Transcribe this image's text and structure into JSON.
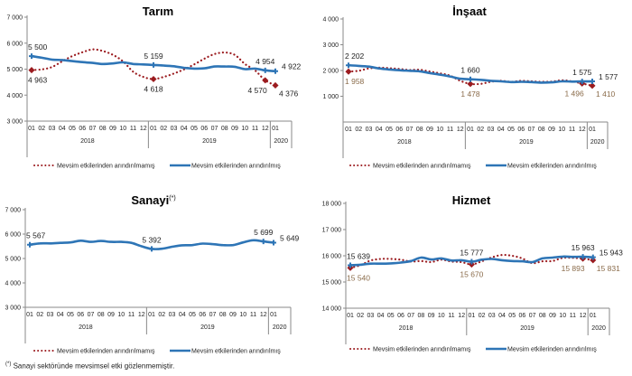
{
  "legend": {
    "unadjusted": "Mevsim etkilerinden arındırılmamış",
    "adjusted": "Mevsim etkilerinden arındırılmış"
  },
  "colors": {
    "adjusted": "#2e75b6",
    "unadjusted": "#9b1b1f",
    "unadjusted_label": "#8a6b4a"
  },
  "footnote": {
    "marker": "(*)",
    "text": "Sanayi sektöründe mevsimsel etki gözlenmemiştir."
  },
  "chart_data": [
    {
      "id": "tarim",
      "type": "line",
      "title": "Tarım",
      "title_sup": "",
      "xlabel": "",
      "ylabel": "",
      "ylim": [
        3000,
        7000
      ],
      "yticks": [
        3000,
        4000,
        5000,
        6000,
        7000
      ],
      "ytick_labels": [
        "3 000",
        "4 000",
        "5 000",
        "6 000",
        "7 000"
      ],
      "x_months": [
        "01",
        "02",
        "03",
        "04",
        "05",
        "06",
        "07",
        "08",
        "09",
        "10",
        "11",
        "12",
        "01",
        "02",
        "03",
        "04",
        "05",
        "06",
        "07",
        "08",
        "09",
        "10",
        "11",
        "12",
        "01"
      ],
      "years": [
        {
          "label": "2018",
          "months": 12
        },
        {
          "label": "2019",
          "months": 12
        },
        {
          "label": "2020",
          "months": 1
        }
      ],
      "legend_position": "bottom",
      "series": [
        {
          "name": "Mevsim etkilerinden arındırılmamış",
          "style": "dotted",
          "values": [
            4963,
            4990,
            5080,
            5300,
            5500,
            5650,
            5760,
            5700,
            5550,
            5300,
            4900,
            4700,
            4618,
            4700,
            4830,
            4990,
            5180,
            5400,
            5580,
            5640,
            5550,
            5200,
            4950,
            4570,
            4376
          ],
          "markers": [
            0,
            12,
            23,
            24
          ]
        },
        {
          "name": "Mevsim etkilerinden arındırılmış",
          "style": "solid",
          "values": [
            5500,
            5440,
            5370,
            5350,
            5310,
            5270,
            5240,
            5200,
            5220,
            5260,
            5200,
            5180,
            5159,
            5140,
            5110,
            5050,
            5020,
            5030,
            5100,
            5100,
            5090,
            5000,
            5020,
            4954,
            4922
          ],
          "markers": [
            0,
            12,
            23,
            24
          ]
        }
      ],
      "annotations": [
        {
          "series": 1,
          "index": 0,
          "text": "5 500",
          "pos": "above"
        },
        {
          "series": 0,
          "index": 0,
          "text": "4 963",
          "pos": "below"
        },
        {
          "series": 1,
          "index": 12,
          "text": "5 159",
          "pos": "above"
        },
        {
          "series": 0,
          "index": 12,
          "text": "4 618",
          "pos": "below"
        },
        {
          "series": 1,
          "index": 23,
          "text": "4 954",
          "pos": "above"
        },
        {
          "series": 0,
          "index": 23,
          "text": "4 570",
          "pos": "below"
        },
        {
          "series": 1,
          "index": 24,
          "text": "4 922",
          "pos": "right"
        },
        {
          "series": 0,
          "index": 24,
          "text": "4 376",
          "pos": "belowright"
        }
      ]
    },
    {
      "id": "insaat",
      "type": "line",
      "title": "İnşaat",
      "title_sup": "",
      "xlabel": "",
      "ylabel": "",
      "ylim": [
        0,
        4000
      ],
      "yticks": [
        1000,
        2000,
        3000,
        4000
      ],
      "ytick_labels": [
        "1 000",
        "2 000",
        "3 000",
        "4 000"
      ],
      "x_months": [
        "01",
        "02",
        "03",
        "04",
        "05",
        "06",
        "07",
        "08",
        "09",
        "10",
        "11",
        "12",
        "01",
        "02",
        "03",
        "04",
        "05",
        "06",
        "07",
        "08",
        "09",
        "10",
        "11",
        "12",
        "01"
      ],
      "years": [
        {
          "label": "2018",
          "months": 12
        },
        {
          "label": "2019",
          "months": 12
        },
        {
          "label": "2020",
          "months": 1
        }
      ],
      "legend_position": "bottom",
      "series": [
        {
          "name": "Mevsim etkilerinden arındırılmamış",
          "style": "dotted",
          "values": [
            1958,
            1990,
            2080,
            2110,
            2090,
            2060,
            2020,
            2030,
            1960,
            1890,
            1800,
            1600,
            1478,
            1480,
            1560,
            1600,
            1560,
            1600,
            1580,
            1560,
            1570,
            1620,
            1580,
            1496,
            1410
          ],
          "markers": [
            0,
            12,
            23,
            24
          ]
        },
        {
          "name": "Mevsim etkilerinden arındırılmış",
          "style": "solid",
          "values": [
            2202,
            2180,
            2150,
            2080,
            2040,
            2010,
            1990,
            1970,
            1900,
            1840,
            1770,
            1680,
            1660,
            1640,
            1600,
            1580,
            1550,
            1560,
            1550,
            1530,
            1540,
            1580,
            1570,
            1575,
            1577
          ],
          "markers": [
            0,
            12,
            23,
            24
          ]
        }
      ],
      "annotations": [
        {
          "series": 1,
          "index": 0,
          "text": "2 202",
          "pos": "above"
        },
        {
          "series": 0,
          "index": 0,
          "text": "1 958",
          "pos": "below",
          "alt": true
        },
        {
          "series": 1,
          "index": 12,
          "text": "1 660",
          "pos": "above"
        },
        {
          "series": 0,
          "index": 12,
          "text": "1 478",
          "pos": "below",
          "alt": true
        },
        {
          "series": 1,
          "index": 23,
          "text": "1 575",
          "pos": "above"
        },
        {
          "series": 0,
          "index": 23,
          "text": "1 496",
          "pos": "below",
          "alt": true
        },
        {
          "series": 1,
          "index": 24,
          "text": "1 577",
          "pos": "right"
        },
        {
          "series": 0,
          "index": 24,
          "text": "1 410",
          "pos": "belowright",
          "alt": true
        }
      ]
    },
    {
      "id": "sanayi",
      "type": "line",
      "title": "Sanayi",
      "title_sup": "(*)",
      "xlabel": "",
      "ylabel": "",
      "ylim": [
        3000,
        7000
      ],
      "yticks": [
        3000,
        4000,
        5000,
        6000,
        7000
      ],
      "ytick_labels": [
        "3 000",
        "4 000",
        "5 000",
        "6 000",
        "7 000"
      ],
      "x_months": [
        "01",
        "02",
        "03",
        "04",
        "05",
        "06",
        "07",
        "08",
        "09",
        "10",
        "11",
        "12",
        "01",
        "02",
        "03",
        "04",
        "05",
        "06",
        "07",
        "08",
        "09",
        "10",
        "11",
        "12",
        "01"
      ],
      "years": [
        {
          "label": "2018",
          "months": 12
        },
        {
          "label": "2019",
          "months": 12
        },
        {
          "label": "2020",
          "months": 1
        }
      ],
      "legend_position": "bottom",
      "series": [
        {
          "name": "Mevsim etkilerinden arındırılmamış",
          "style": "dotted",
          "values": [],
          "markers": []
        },
        {
          "name": "Mevsim etkilerinden arındırılmış",
          "style": "solid",
          "values": [
            5567,
            5620,
            5620,
            5640,
            5660,
            5730,
            5680,
            5720,
            5680,
            5680,
            5640,
            5500,
            5392,
            5400,
            5480,
            5540,
            5550,
            5610,
            5590,
            5550,
            5550,
            5660,
            5750,
            5699,
            5649
          ],
          "markers": [
            0,
            12,
            23,
            24
          ]
        }
      ],
      "annotations": [
        {
          "series": 1,
          "index": 0,
          "text": "5 567",
          "pos": "above"
        },
        {
          "series": 1,
          "index": 12,
          "text": "5 392",
          "pos": "above"
        },
        {
          "series": 1,
          "index": 23,
          "text": "5 699",
          "pos": "above"
        },
        {
          "series": 1,
          "index": 24,
          "text": "5 649",
          "pos": "right"
        }
      ]
    },
    {
      "id": "hizmet",
      "type": "line",
      "title": "Hizmet",
      "title_sup": "",
      "xlabel": "",
      "ylabel": "",
      "ylim": [
        14000,
        18000
      ],
      "yticks": [
        14000,
        15000,
        16000,
        17000,
        18000
      ],
      "ytick_labels": [
        "14 000",
        "15 000",
        "16 000",
        "17 000",
        "18 000"
      ],
      "x_months": [
        "01",
        "02",
        "03",
        "04",
        "05",
        "06",
        "07",
        "08",
        "09",
        "10",
        "11",
        "12",
        "01",
        "02",
        "03",
        "04",
        "05",
        "06",
        "07",
        "08",
        "09",
        "10",
        "11",
        "12",
        "01"
      ],
      "years": [
        {
          "label": "2018",
          "months": 12
        },
        {
          "label": "2019",
          "months": 12
        },
        {
          "label": "2020",
          "months": 1
        }
      ],
      "legend_position": "bottom",
      "series": [
        {
          "name": "Mevsim etkilerinden arındırılmamış",
          "style": "dotted",
          "values": [
            15540,
            15640,
            15820,
            15880,
            15880,
            15850,
            15780,
            15800,
            15760,
            15850,
            15780,
            15760,
            15670,
            15790,
            15940,
            16030,
            16000,
            15900,
            15720,
            15790,
            15800,
            15920,
            15920,
            15893,
            15831
          ],
          "markers": [
            0,
            12,
            23,
            24
          ]
        },
        {
          "name": "Mevsim etkilerinden arındırılmış",
          "style": "solid",
          "values": [
            15639,
            15660,
            15700,
            15700,
            15710,
            15740,
            15800,
            15930,
            15860,
            15900,
            15820,
            15830,
            15777,
            15850,
            15880,
            15830,
            15800,
            15790,
            15760,
            15900,
            15930,
            15970,
            15960,
            15963,
            15943
          ],
          "markers": [
            0,
            12,
            23,
            24
          ]
        }
      ],
      "annotations": [
        {
          "series": 1,
          "index": 0,
          "text": "15 639",
          "pos": "above"
        },
        {
          "series": 0,
          "index": 0,
          "text": "15 540",
          "pos": "below",
          "alt": true
        },
        {
          "series": 1,
          "index": 12,
          "text": "15 777",
          "pos": "above"
        },
        {
          "series": 0,
          "index": 12,
          "text": "15 670",
          "pos": "below",
          "alt": true
        },
        {
          "series": 1,
          "index": 23,
          "text": "15 963",
          "pos": "above"
        },
        {
          "series": 0,
          "index": 23,
          "text": "15 893",
          "pos": "below",
          "alt": true
        },
        {
          "series": 1,
          "index": 24,
          "text": "15 943",
          "pos": "right"
        },
        {
          "series": 0,
          "index": 24,
          "text": "15 831",
          "pos": "belowright",
          "alt": true
        }
      ]
    }
  ]
}
